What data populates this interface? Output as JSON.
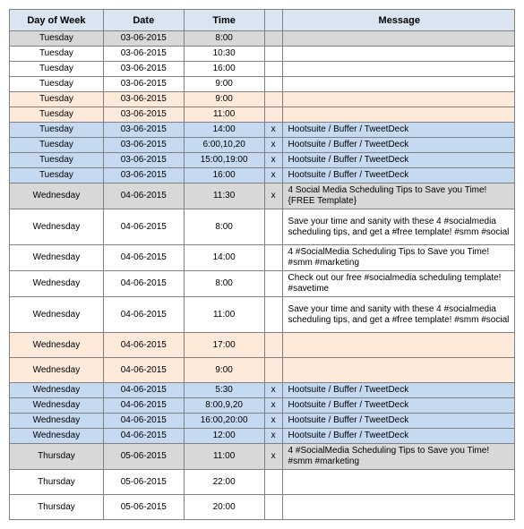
{
  "columns": {
    "day": "Day of Week",
    "date": "Date",
    "time": "Time",
    "x": "",
    "message": "Message"
  },
  "colors": {
    "header": "#dbe5f1",
    "gray": "#d8d8d8",
    "white": "#ffffff",
    "yellow": "#fdeada",
    "blue": "#c5d9f1",
    "border": "#808080"
  },
  "rows": [
    {
      "bg": "gray",
      "height": "",
      "day": "Tuesday",
      "date": "03-06-2015",
      "time": "8:00",
      "x": "",
      "msg": ""
    },
    {
      "bg": "white",
      "height": "",
      "day": "Tuesday",
      "date": "03-06-2015",
      "time": "10:30",
      "x": "",
      "msg": ""
    },
    {
      "bg": "white",
      "height": "",
      "day": "Tuesday",
      "date": "03-06-2015",
      "time": "16:00",
      "x": "",
      "msg": ""
    },
    {
      "bg": "white",
      "height": "",
      "day": "Tuesday",
      "date": "03-06-2015",
      "time": "9:00",
      "x": "",
      "msg": ""
    },
    {
      "bg": "yellow",
      "height": "",
      "day": "Tuesday",
      "date": "03-06-2015",
      "time": "9:00",
      "x": "",
      "msg": ""
    },
    {
      "bg": "yellow",
      "height": "",
      "day": "Tuesday",
      "date": "03-06-2015",
      "time": "11:00",
      "x": "",
      "msg": ""
    },
    {
      "bg": "blue",
      "height": "",
      "day": "Tuesday",
      "date": "03-06-2015",
      "time": "14:00",
      "x": "x",
      "msg": "Hootsuite / Buffer / TweetDeck"
    },
    {
      "bg": "blue",
      "height": "",
      "day": "Tuesday",
      "date": "03-06-2015",
      "time": "6:00,10,20",
      "x": "x",
      "msg": "Hootsuite / Buffer / TweetDeck"
    },
    {
      "bg": "blue",
      "height": "",
      "day": "Tuesday",
      "date": "03-06-2015",
      "time": "15:00,19:00",
      "x": "x",
      "msg": "Hootsuite / Buffer / TweetDeck"
    },
    {
      "bg": "blue",
      "height": "",
      "day": "Tuesday",
      "date": "03-06-2015",
      "time": "16:00",
      "x": "x",
      "msg": "Hootsuite / Buffer / TweetDeck"
    },
    {
      "bg": "gray",
      "height": "tall",
      "day": "Wednesday",
      "date": "04-06-2015",
      "time": "11:30",
      "x": "x",
      "msg": "4 Social Media Scheduling Tips to Save you Time! {FREE Template}"
    },
    {
      "bg": "white",
      "height": "taller",
      "day": "Wednesday",
      "date": "04-06-2015",
      "time": "8:00",
      "x": "",
      "msg": "Save your time and sanity with these 4 #socialmedia scheduling tips, and get a #free template! #smm #social"
    },
    {
      "bg": "white",
      "height": "tall",
      "day": "Wednesday",
      "date": "04-06-2015",
      "time": "14:00",
      "x": "",
      "msg": "4 #SocialMedia Scheduling Tips to Save you Time! #smm #marketing"
    },
    {
      "bg": "white",
      "height": "tall",
      "day": "Wednesday",
      "date": "04-06-2015",
      "time": "8:00",
      "x": "",
      "msg": "Check out our free #socialmedia scheduling template! #savetime"
    },
    {
      "bg": "white",
      "height": "taller",
      "day": "Wednesday",
      "date": "04-06-2015",
      "time": "11:00",
      "x": "",
      "msg": "Save your time and sanity with these 4 #socialmedia scheduling tips, and get a #free template! #smm #social"
    },
    {
      "bg": "yellow",
      "height": "tall",
      "day": "Wednesday",
      "date": "04-06-2015",
      "time": "17:00",
      "x": "",
      "msg": ""
    },
    {
      "bg": "yellow",
      "height": "tall",
      "day": "Wednesday",
      "date": "04-06-2015",
      "time": "9:00",
      "x": "",
      "msg": ""
    },
    {
      "bg": "blue",
      "height": "",
      "day": "Wednesday",
      "date": "04-06-2015",
      "time": "5:30",
      "x": "x",
      "msg": "Hootsuite / Buffer / TweetDeck"
    },
    {
      "bg": "blue",
      "height": "",
      "day": "Wednesday",
      "date": "04-06-2015",
      "time": "8:00,9,20",
      "x": "x",
      "msg": "Hootsuite / Buffer / TweetDeck"
    },
    {
      "bg": "blue",
      "height": "",
      "day": "Wednesday",
      "date": "04-06-2015",
      "time": "16:00,20:00",
      "x": "x",
      "msg": "Hootsuite / Buffer / TweetDeck"
    },
    {
      "bg": "blue",
      "height": "",
      "day": "Wednesday",
      "date": "04-06-2015",
      "time": "12:00",
      "x": "x",
      "msg": "Hootsuite / Buffer / TweetDeck"
    },
    {
      "bg": "gray",
      "height": "tall",
      "day": "Thursday",
      "date": "05-06-2015",
      "time": "11:00",
      "x": "x",
      "msg": "4 #SocialMedia Scheduling Tips to Save you Time! #smm #marketing"
    },
    {
      "bg": "white",
      "height": "tall",
      "day": "Thursday",
      "date": "05-06-2015",
      "time": "22:00",
      "x": "",
      "msg": ""
    },
    {
      "bg": "white",
      "height": "tall",
      "day": "Thursday",
      "date": "05-06-2015",
      "time": "20:00",
      "x": "",
      "msg": ""
    }
  ]
}
